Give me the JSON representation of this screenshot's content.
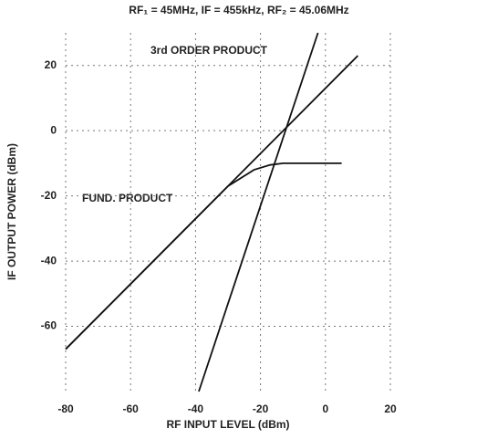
{
  "chart_data": {
    "type": "line",
    "title": "RF₁ = 45MHz, IF = 455kHz, RF₂ = 45.06MHz",
    "x_label": "RF INPUT LEVEL (dBm)",
    "y_label": "IF OUTPUT POWER (dBm)",
    "annotations": [
      "3rd ORDER PRODUCT",
      "FUND. PRODUCT"
    ],
    "xlim": [
      -80,
      20
    ],
    "xticks": [
      -80,
      -60,
      -40,
      -20,
      0,
      20
    ],
    "ylim": [
      -80,
      30
    ],
    "yticks": [
      -60,
      -40,
      -20,
      0,
      20
    ],
    "grid": true,
    "series": [
      {
        "color": "#111111",
        "x": [
          -80,
          10
        ],
        "values": [
          -67,
          23
        ]
      },
      {
        "color": "#111111",
        "x": [
          -80,
          -30,
          -22,
          -17,
          -13,
          5
        ],
        "values": [
          -67,
          -17,
          -12,
          -10.5,
          -10,
          -10
        ]
      },
      {
        "color": "#111111",
        "x": [
          -39,
          -2.3
        ],
        "values": [
          -80,
          30
        ]
      }
    ]
  }
}
